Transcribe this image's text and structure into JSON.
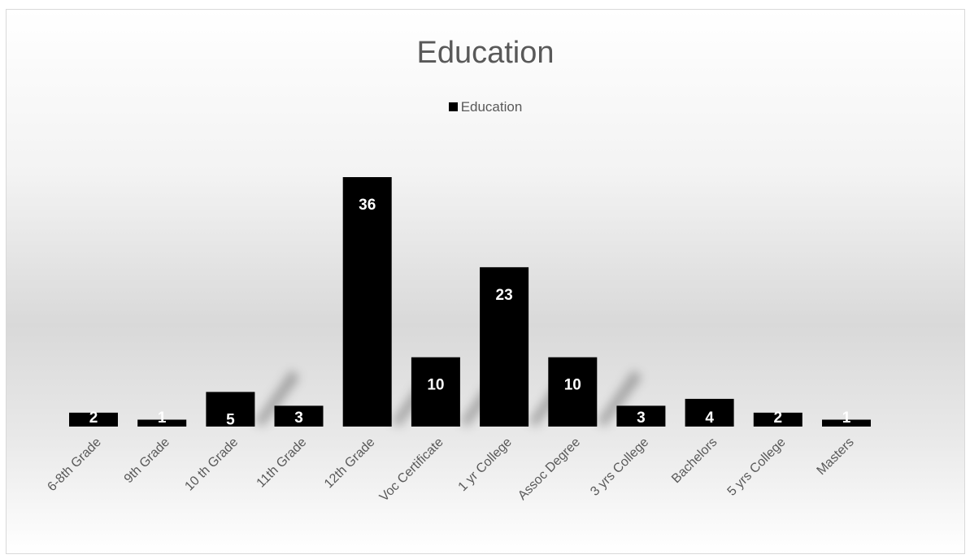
{
  "chart_data": {
    "type": "bar",
    "title": "Education",
    "legend": "top",
    "categories": [
      "6-8th Grade",
      "9th Grade",
      "10 th Grade",
      "11th Grade",
      "12th Grade",
      "Voc Certificate",
      "1 yr College",
      "Assoc Degree",
      "3 yrs College",
      "Bachelors",
      "5 yrs College",
      "Masters"
    ],
    "series": [
      {
        "name": "Education",
        "values": [
          2,
          1,
          5,
          3,
          36,
          10,
          23,
          10,
          3,
          4,
          2,
          1
        ]
      }
    ],
    "xlabel": "",
    "ylabel": "",
    "ylim": [
      0,
      36
    ],
    "grid": false,
    "data_labels": true,
    "colors": {
      "bar": "#000000",
      "label": "#ffffff",
      "title": "#595959",
      "axis": "#595959"
    }
  }
}
